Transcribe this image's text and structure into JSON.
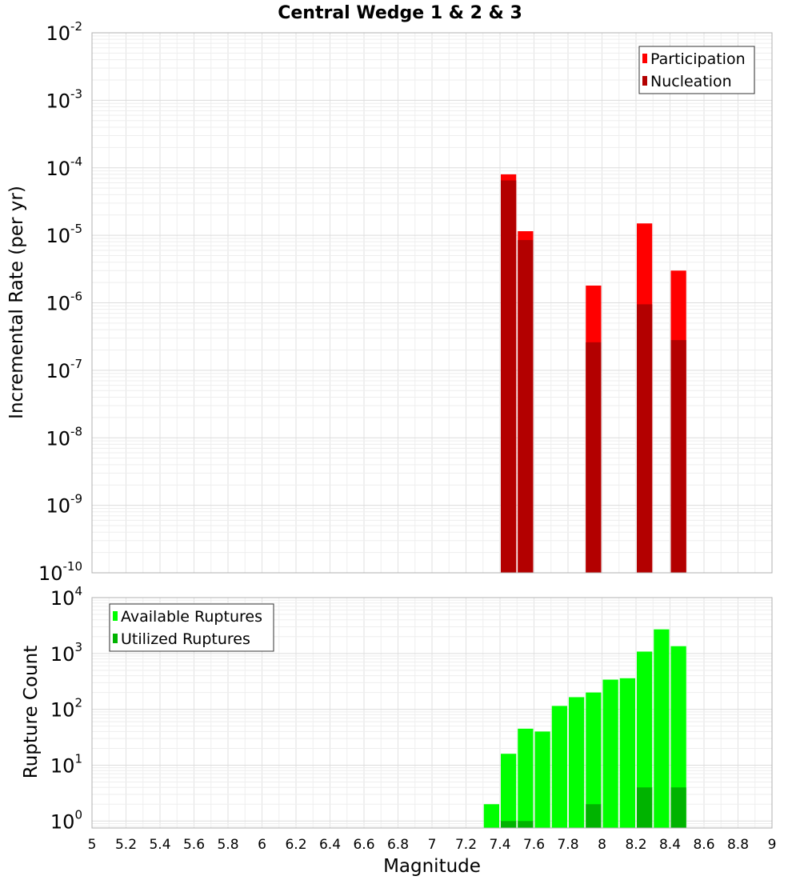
{
  "chart_data": [
    {
      "type": "bar",
      "title": "Central Wedge 1 & 2 & 3",
      "xlabel": "",
      "ylabel": "Incremental Rate (per yr)",
      "yscale": "log",
      "ylim": [
        1e-10,
        0.01
      ],
      "xlim": [
        5,
        9
      ],
      "grid": true,
      "legend": "top-right",
      "ytick_exponents": [
        "-10",
        "-9",
        "-8",
        "-7",
        "-6",
        "-5",
        "-4",
        "-3",
        "-2"
      ],
      "bar_width": 0.1,
      "series": [
        {
          "name": "Participation",
          "color": "#ff0000",
          "x": [
            7.45,
            7.55,
            7.95,
            8.25,
            8.45
          ],
          "values": [
            8e-05,
            1.15e-05,
            1.8e-06,
            1.5e-05,
            3e-06
          ]
        },
        {
          "name": "Nucleation",
          "color": "#b30000",
          "x": [
            7.45,
            7.55,
            7.95,
            8.25,
            8.45
          ],
          "values": [
            6.5e-05,
            8.5e-06,
            2.6e-07,
            9.5e-07,
            2.8e-07
          ]
        }
      ]
    },
    {
      "type": "bar",
      "xlabel": "Magnitude",
      "ylabel": "Rupture Count",
      "yscale": "log",
      "ylim": [
        0.75,
        10000
      ],
      "xlim": [
        5,
        9
      ],
      "grid": true,
      "legend": "top-left",
      "ytick_exponents": [
        "0",
        "1",
        "2",
        "3",
        "4"
      ],
      "xticks": [
        "5",
        "5.2",
        "5.4",
        "5.6",
        "5.8",
        "6",
        "6.2",
        "6.4",
        "6.6",
        "6.8",
        "7",
        "7.2",
        "7.4",
        "7.6",
        "7.8",
        "8",
        "8.2",
        "8.4",
        "8.6",
        "8.8",
        "9"
      ],
      "bar_width": 0.1,
      "series": [
        {
          "name": "Available Ruptures",
          "color": "#00ff00",
          "x": [
            7.35,
            7.45,
            7.55,
            7.65,
            7.75,
            7.85,
            7.95,
            8.05,
            8.15,
            8.25,
            8.35,
            8.45
          ],
          "values": [
            2,
            16,
            45,
            40,
            115,
            165,
            200,
            340,
            360,
            1080,
            2700,
            1350
          ]
        },
        {
          "name": "Utilized Ruptures",
          "color": "#00b300",
          "x": [
            7.45,
            7.55,
            7.95,
            8.25,
            8.45
          ],
          "values": [
            1,
            1,
            2,
            4,
            4
          ]
        }
      ]
    }
  ]
}
